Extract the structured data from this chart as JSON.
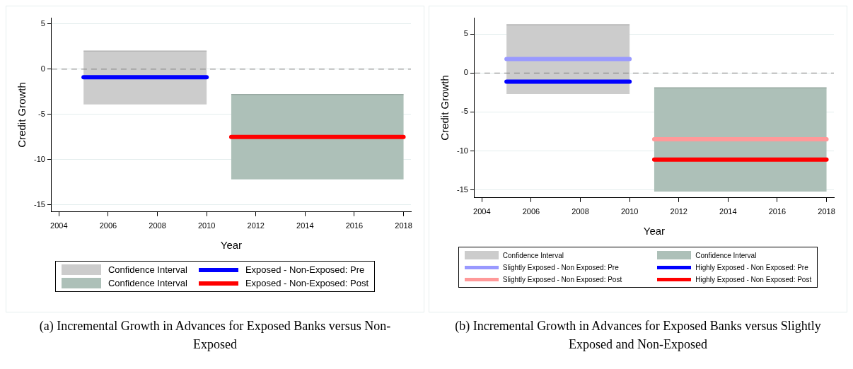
{
  "chart_data": [
    {
      "type": "line",
      "xlabel": "Year",
      "ylabel": "Credit Growth",
      "xlim": [
        2003.7,
        2018.3
      ],
      "ylim": [
        -15.8,
        5.7
      ],
      "xticks": [
        2004,
        2006,
        2008,
        2010,
        2012,
        2014,
        2016,
        2018
      ],
      "yticks": [
        -15,
        -10,
        -5,
        0,
        5
      ],
      "grid": "y",
      "legend": "bottom",
      "marker": "none",
      "ref_lines": [
        {
          "axis": "y",
          "value": 0,
          "color": "#808080",
          "line_style": "dashed"
        }
      ],
      "annotations": [
        "(a) Incremental Growth in Advances for Exposed Banks versus Non-Exposed"
      ],
      "series": [
        {
          "name": "Confidence Interval",
          "type": "bar",
          "color": "#cccccc",
          "x": [
            2007.5
          ],
          "base": [
            -3.9
          ],
          "values": [
            5.9
          ],
          "xerrors": [
            2.5
          ]
        },
        {
          "name": "Exposed - Non-Exposed: Pre",
          "type": "line",
          "color": "#0000ff",
          "x": [
            2005,
            2010
          ],
          "values": [
            -0.9,
            -0.9
          ]
        },
        {
          "name": "Confidence Interval",
          "type": "bar",
          "color": "#adc0b8",
          "x": [
            2014.5
          ],
          "base": [
            -12.2
          ],
          "values": [
            9.4
          ],
          "xerrors": [
            3.5
          ]
        },
        {
          "name": "Exposed - Non-Exposed: Post",
          "type": "line",
          "color": "#ff0000",
          "x": [
            2011,
            2018
          ],
          "values": [
            -7.5,
            -7.5
          ]
        }
      ]
    },
    {
      "type": "line",
      "xlabel": "Year",
      "ylabel": "Credit Growth",
      "xlim": [
        2003.7,
        2018.3
      ],
      "ylim": [
        -16.0,
        7.1
      ],
      "xticks": [
        2004,
        2006,
        2008,
        2010,
        2012,
        2014,
        2016,
        2018
      ],
      "yticks": [
        -15,
        -10,
        -5,
        0,
        5
      ],
      "grid": "y",
      "legend": "bottom",
      "marker": "none",
      "ref_lines": [
        {
          "axis": "y",
          "value": 0,
          "color": "#808080",
          "line_style": "dashed"
        }
      ],
      "annotations": [
        "(b) Incremental Growth in Advances for Exposed Banks versus Slightly Exposed and Non-Exposed"
      ],
      "series": [
        {
          "name": "Confidence Interval",
          "type": "bar",
          "color": "#cccccc",
          "x": [
            2007.5
          ],
          "base": [
            -2.7
          ],
          "values": [
            8.9
          ],
          "xerrors": [
            2.5
          ]
        },
        {
          "name": "Confidence Interval",
          "type": "bar",
          "color": "#adc0b8",
          "x": [
            2014.5
          ],
          "base": [
            -15.2
          ],
          "values": [
            13.3
          ],
          "xerrors": [
            3.5
          ]
        },
        {
          "name": "Slightly Exposed - Non Exposed: Pre",
          "type": "line",
          "color": "#9999ff",
          "x": [
            2005,
            2010
          ],
          "values": [
            1.8,
            1.8
          ]
        },
        {
          "name": "Highly Exposed - Non Exposed: Pre",
          "type": "line",
          "color": "#0000ff",
          "x": [
            2005,
            2010
          ],
          "values": [
            -1.1,
            -1.1
          ]
        },
        {
          "name": "Slightly Exposed - Non Exposed: Post",
          "type": "line",
          "color": "#ff9999",
          "x": [
            2011,
            2018
          ],
          "values": [
            -8.5,
            -8.5
          ]
        },
        {
          "name": "Highly Exposed - Non Exposed: Post",
          "type": "line",
          "color": "#ff0000",
          "x": [
            2011,
            2018
          ],
          "values": [
            -11.1,
            -11.1
          ]
        }
      ]
    }
  ]
}
